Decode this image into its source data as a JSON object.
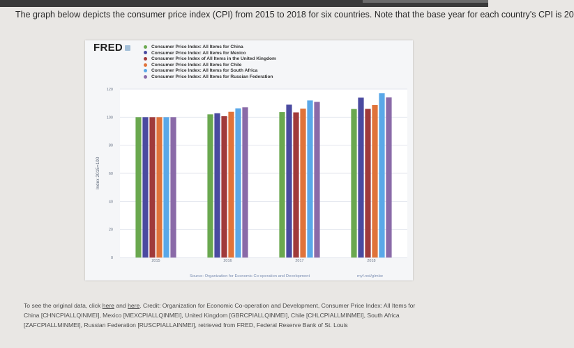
{
  "question": "The graph below depicts the consumer price index (CPI) from 2015 to 2018 for six countries. Note that the base year for each country's CPI is 20",
  "figure": {
    "logo": "FRED",
    "source_note": "Source: Organization for Economic Co-operation and Development",
    "source_tag": "myf.red/g/mbe"
  },
  "chart_data": {
    "type": "bar",
    "categories": [
      "2015",
      "2016",
      "2017",
      "2018"
    ],
    "ylabel": "Index 2015=100",
    "ylim": [
      0,
      120
    ],
    "yticks": [
      "0",
      "20",
      "40",
      "60",
      "80",
      "100",
      "120"
    ],
    "series": [
      {
        "name": "Consumer Price Index: All Items for China",
        "color": "#6aa84f",
        "values": [
          100,
          102,
          103.6,
          105.8
        ]
      },
      {
        "name": "Consumer Price Index: All Items for Mexico",
        "color": "#4a4aa0",
        "values": [
          100,
          102.8,
          108.9,
          113.9
        ]
      },
      {
        "name": "Consumer Price Index of All Items in the United Kingdom",
        "color": "#a03a3a",
        "values": [
          100,
          100.7,
          103.4,
          105.9
        ]
      },
      {
        "name": "Consumer Price Index: All Items for Chile",
        "color": "#e0733a",
        "values": [
          100,
          103.8,
          106.1,
          108.6
        ]
      },
      {
        "name": "Consumer Price Index: All Items for South Africa",
        "color": "#5aa8e8",
        "values": [
          100,
          106.3,
          111.9,
          117.0
        ]
      },
      {
        "name": "Consumer Price Index: All Items for Russian Federation",
        "color": "#8a6aa8",
        "values": [
          100,
          107.0,
          110.9,
          114.1
        ]
      }
    ]
  },
  "footer": {
    "line1_prefix": "To see the original data, click ",
    "link1": "here",
    "and": " and ",
    "link2": "here",
    "line1_suffix": ". Credit: Organization for Economic Co-operation and Development, Consumer Price Index: All Items for",
    "line2": "China [CHNCPIALLQINMEI], Mexico [MEXCPIALLQINMEI], United Kingdom [GBRCPIALLQINMEI], Chile [CHLCPIALLMINMEI], South Africa",
    "line3": "[ZAFCPIALLMINMEI], Russian Federation [RUSCPIALLAINMEI], retrieved from FRED, Federal Reserve Bank of St. Louis"
  }
}
